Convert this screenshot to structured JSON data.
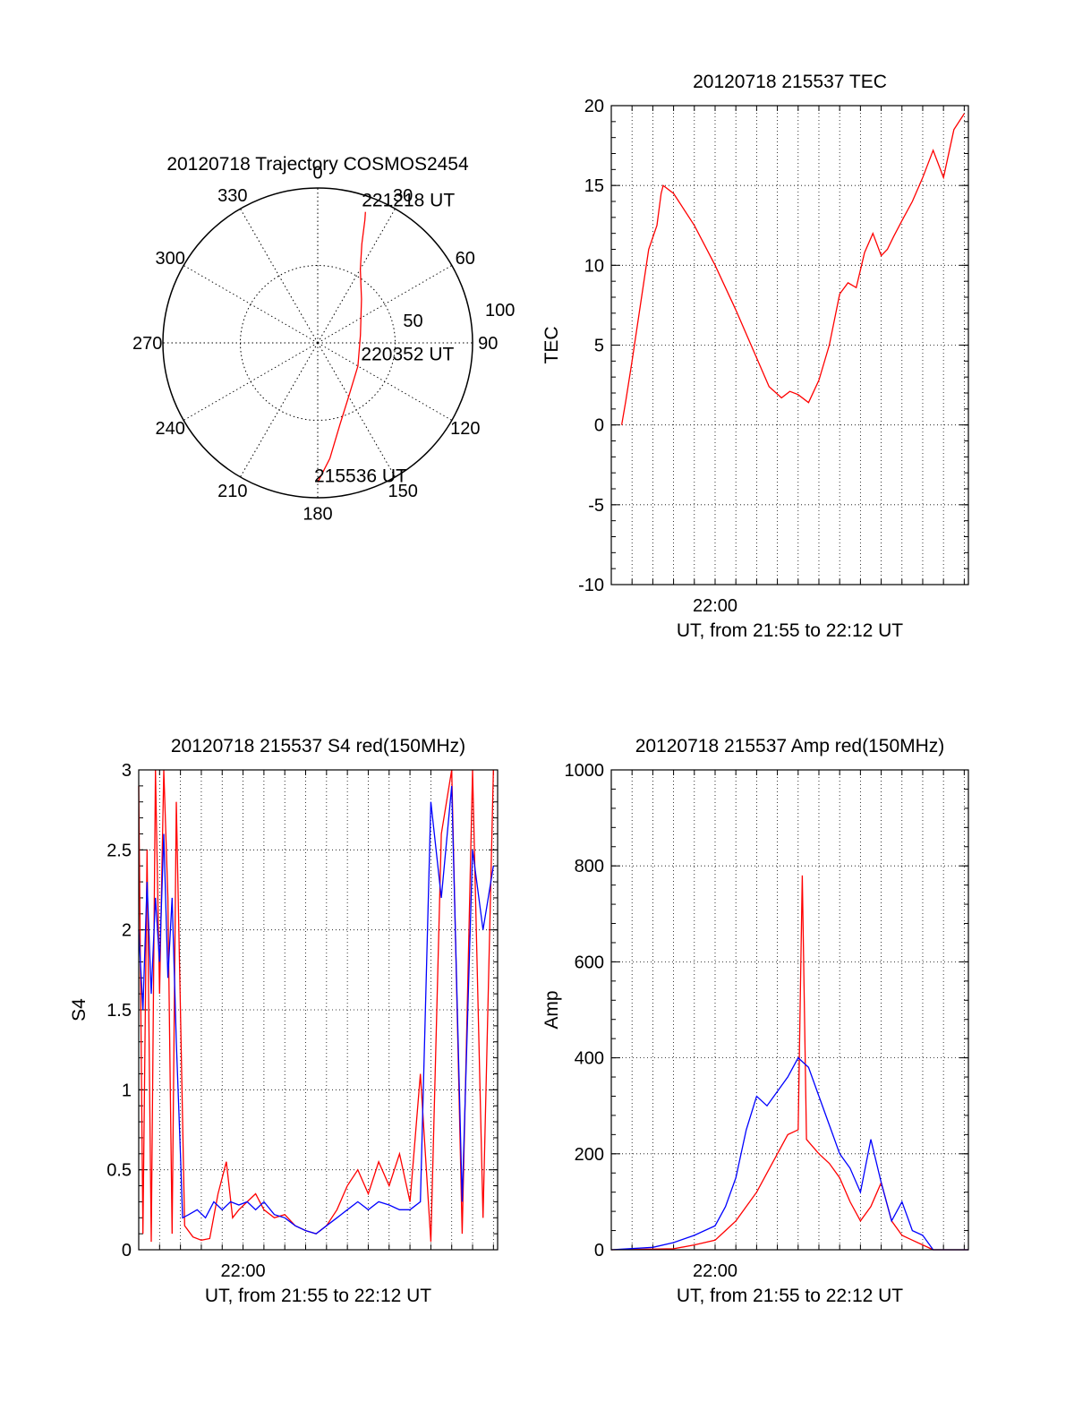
{
  "chart_data": [
    {
      "type": "polar",
      "title": "20120718 Trajectory COSMOS2454",
      "angle_labels": [
        "0",
        "30",
        "60",
        "90",
        "120",
        "150",
        "180",
        "210",
        "240",
        "270",
        "300",
        "330"
      ],
      "radius_labels": [
        "50",
        "100"
      ],
      "rlim": [
        0,
        100
      ],
      "grid": true,
      "series": [
        {
          "color": "#ff0000",
          "points": [
            {
              "az": 180,
              "r": 90
            },
            {
              "az": 174,
              "r": 75
            },
            {
              "az": 165,
              "r": 55
            },
            {
              "az": 150,
              "r": 40
            },
            {
              "az": 120,
              "r": 30
            },
            {
              "az": 80,
              "r": 28
            },
            {
              "az": 45,
              "r": 40
            },
            {
              "az": 30,
              "r": 55
            },
            {
              "az": 24,
              "r": 70
            },
            {
              "az": 21,
              "r": 85
            },
            {
              "az": 20,
              "r": 90
            }
          ]
        }
      ],
      "annotations": [
        {
          "text": "221218 UT",
          "az": 20,
          "r": 90
        },
        {
          "text": "220352 UT",
          "az": 92,
          "r": 28
        },
        {
          "text": "215536 UT",
          "az": 180,
          "r": 90
        }
      ]
    },
    {
      "type": "line",
      "title": "20120718 215537 TEC",
      "xlabel": "UT, from 21:55 to 22:12 UT",
      "ylabel": "TEC",
      "xlim": [
        -5.0,
        12.2
      ],
      "ylim": [
        -10,
        20
      ],
      "x_ticks": [
        {
          "value": 0,
          "label": "22:00"
        }
      ],
      "y_ticks": [
        "-10",
        "-5",
        "0",
        "5",
        "10",
        "15",
        "20"
      ],
      "grid": true,
      "series": [
        {
          "color": "#ff0000",
          "x": [
            -4.5,
            -4.3,
            -4.0,
            -3.6,
            -3.2,
            -2.8,
            -2.6,
            -2.5,
            -2.0,
            -1.0,
            0.0,
            1.0,
            2.0,
            2.6,
            3.2,
            3.6,
            4.0,
            4.5,
            5.0,
            5.5,
            6.0,
            6.4,
            6.8,
            7.2,
            7.6,
            8.0,
            8.3,
            8.6,
            9.0,
            9.5,
            10.0,
            10.5,
            11.0,
            11.5,
            12.0
          ],
          "y": [
            0,
            1.5,
            4,
            7.5,
            11,
            12.5,
            14.5,
            15,
            14.5,
            12.5,
            10,
            7.2,
            4.2,
            2.4,
            1.7,
            2.1,
            1.9,
            1.4,
            2.8,
            5,
            8.2,
            8.9,
            8.6,
            10.8,
            12,
            10.6,
            11,
            11.8,
            12.8,
            14,
            15.5,
            17.2,
            15.5,
            18.5,
            19.5
          ]
        }
      ]
    },
    {
      "type": "line",
      "title": "20120718 215537 S4 red(150MHz)",
      "xlabel": "UT, from 21:55 to 22:12 UT",
      "ylabel": "S4",
      "xlim": [
        -5.0,
        12.2
      ],
      "ylim": [
        0,
        3
      ],
      "x_ticks": [
        {
          "value": 0,
          "label": "22:00"
        }
      ],
      "y_ticks": [
        "0",
        "0.5",
        "1",
        "1.5",
        "2",
        "2.5",
        "3"
      ],
      "grid": true,
      "series": [
        {
          "color": "#ff0000",
          "x": [
            -5.0,
            -4.8,
            -4.6,
            -4.4,
            -4.2,
            -4.0,
            -3.8,
            -3.6,
            -3.4,
            -3.2,
            -3.0,
            -2.8,
            -2.4,
            -2.0,
            -1.6,
            -1.2,
            -0.8,
            -0.5,
            -0.2,
            0.2,
            0.6,
            1.0,
            1.5,
            2.0,
            2.5,
            3.0,
            3.5,
            4.0,
            4.5,
            5.0,
            5.5,
            6.0,
            6.5,
            7.0,
            7.5,
            8.0,
            8.5,
            9.0,
            9.5,
            10.0,
            10.5,
            11.0,
            11.5,
            12.0
          ],
          "y": [
            2.9,
            0.1,
            2.5,
            0.05,
            3.0,
            1.6,
            3.0,
            2.2,
            0.1,
            2.8,
            1.5,
            0.15,
            0.08,
            0.06,
            0.07,
            0.35,
            0.55,
            0.2,
            0.25,
            0.3,
            0.35,
            0.25,
            0.2,
            0.22,
            0.15,
            0.12,
            0.1,
            0.15,
            0.25,
            0.4,
            0.5,
            0.35,
            0.55,
            0.4,
            0.6,
            0.3,
            1.1,
            0.05,
            2.6,
            3.0,
            0.1,
            3.0,
            0.2,
            3.0
          ]
        },
        {
          "color": "#0000ff",
          "x": [
            -5.0,
            -4.8,
            -4.6,
            -4.4,
            -4.2,
            -4.0,
            -3.8,
            -3.6,
            -3.4,
            -3.2,
            -3.0,
            -2.9,
            -2.6,
            -2.2,
            -1.8,
            -1.4,
            -1.0,
            -0.6,
            -0.2,
            0.2,
            0.6,
            1.0,
            1.5,
            2.0,
            2.5,
            3.0,
            3.5,
            4.0,
            4.5,
            5.0,
            5.5,
            6.0,
            6.5,
            7.0,
            7.5,
            8.0,
            8.5,
            9.0,
            9.5,
            10.0,
            10.5,
            11.0,
            11.5,
            12.0
          ],
          "y": [
            2.0,
            1.5,
            2.3,
            1.6,
            2.2,
            1.8,
            2.6,
            1.7,
            2.2,
            1.3,
            0.6,
            0.2,
            0.22,
            0.25,
            0.2,
            0.3,
            0.25,
            0.3,
            0.28,
            0.3,
            0.25,
            0.3,
            0.22,
            0.2,
            0.15,
            0.12,
            0.1,
            0.15,
            0.2,
            0.25,
            0.3,
            0.25,
            0.3,
            0.28,
            0.25,
            0.25,
            0.3,
            2.8,
            2.2,
            2.9,
            0.3,
            2.5,
            2.0,
            2.4
          ]
        }
      ]
    },
    {
      "type": "line",
      "title": "20120718 215537 Amp red(150MHz)",
      "xlabel": "UT, from 21:55 to 22:12 UT",
      "ylabel": "Amp",
      "xlim": [
        -5.0,
        12.2
      ],
      "ylim": [
        0,
        1000
      ],
      "x_ticks": [
        {
          "value": 0,
          "label": "22:00"
        }
      ],
      "y_ticks": [
        "0",
        "200",
        "400",
        "600",
        "800",
        "1000"
      ],
      "grid": true,
      "series": [
        {
          "color": "#ff0000",
          "x": [
            -5.0,
            -2.0,
            -1.0,
            0.0,
            0.5,
            1.0,
            1.5,
            2.0,
            2.5,
            3.0,
            3.5,
            4.0,
            4.2,
            4.4,
            4.6,
            5.0,
            5.5,
            6.0,
            6.5,
            7.0,
            7.5,
            8.0,
            8.5,
            9.0,
            9.5,
            10.0,
            10.5,
            12.2
          ],
          "y": [
            0,
            2,
            10,
            20,
            40,
            60,
            90,
            120,
            160,
            200,
            240,
            250,
            780,
            230,
            220,
            200,
            180,
            150,
            100,
            60,
            90,
            140,
            60,
            30,
            20,
            10,
            0,
            0
          ]
        },
        {
          "color": "#0000ff",
          "x": [
            -5.0,
            -3.0,
            -2.0,
            -1.0,
            0.0,
            0.5,
            1.0,
            1.5,
            2.0,
            2.5,
            3.0,
            3.5,
            4.0,
            4.5,
            5.0,
            5.5,
            6.0,
            6.5,
            7.0,
            7.5,
            8.0,
            8.5,
            9.0,
            9.5,
            10.0,
            10.5,
            11.0,
            12.2
          ],
          "y": [
            0,
            5,
            15,
            30,
            50,
            90,
            150,
            250,
            320,
            300,
            330,
            360,
            400,
            380,
            320,
            260,
            200,
            170,
            120,
            230,
            140,
            60,
            100,
            40,
            30,
            0,
            0,
            0
          ]
        }
      ]
    }
  ]
}
